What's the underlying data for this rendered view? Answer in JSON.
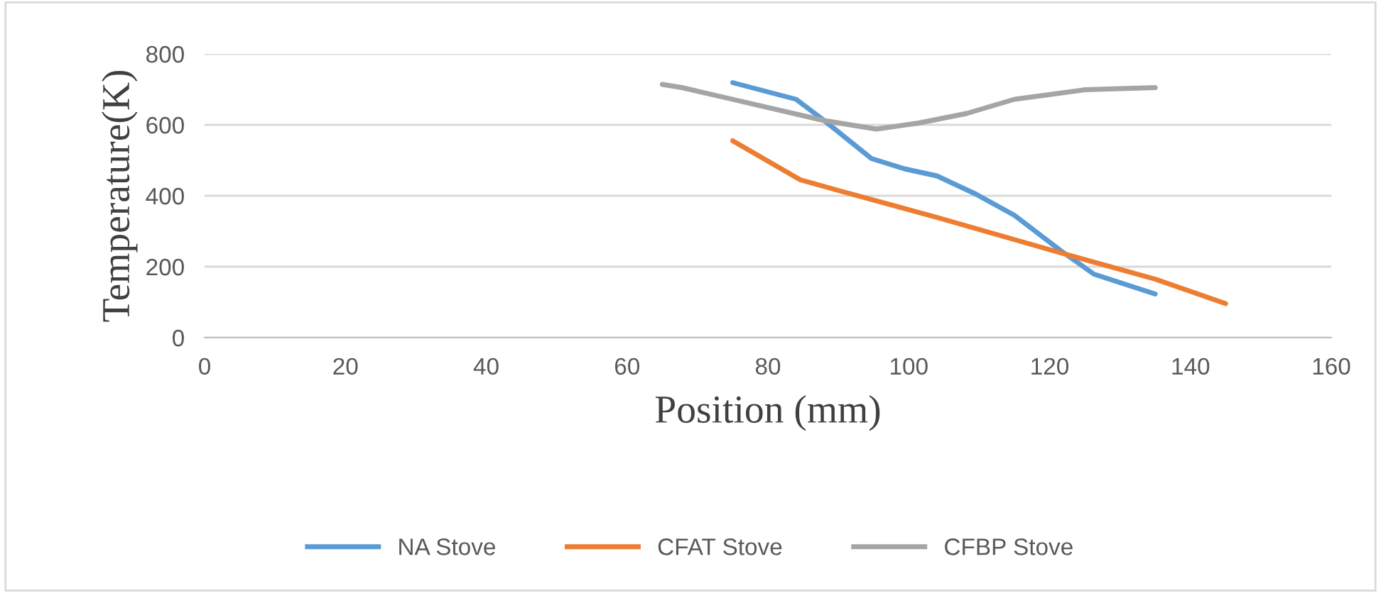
{
  "chart_data": {
    "type": "line",
    "xlabel": "Position (mm)",
    "ylabel": "Temperature(K)",
    "xlim": [
      0,
      160
    ],
    "xticks": [
      0,
      20,
      40,
      60,
      80,
      100,
      120,
      140,
      160
    ],
    "ylim": [
      0,
      800
    ],
    "yticks": [
      0,
      200,
      400,
      600,
      800
    ],
    "grid": "y",
    "legend": "bottom",
    "marker": "none",
    "line_style": "solid",
    "series": [
      {
        "name": "NA Stove",
        "color": "#5b9bd5",
        "x": [
          75,
          84,
          88,
          94.7,
          99.4,
          104,
          109.5,
          115,
          121.6,
          126.3,
          135
        ],
        "values": [
          719,
          672,
          612,
          505,
          476,
          456,
          405,
          345,
          245,
          179,
          123
        ]
      },
      {
        "name": "CFAT Stove",
        "color": "#ed7d31",
        "x": [
          75,
          84.6,
          90,
          104,
          121.6,
          135,
          145
        ],
        "values": [
          555,
          445,
          415,
          339,
          239,
          165,
          96
        ]
      },
      {
        "name": "CFBP Stove",
        "color": "#a5a5a5",
        "x": [
          65,
          67.8,
          88,
          95.4,
          101.4,
          108.2,
          115,
          125,
          135
        ],
        "values": [
          714,
          705,
          612,
          588,
          605,
          632,
          672,
          699,
          705
        ]
      }
    ]
  }
}
